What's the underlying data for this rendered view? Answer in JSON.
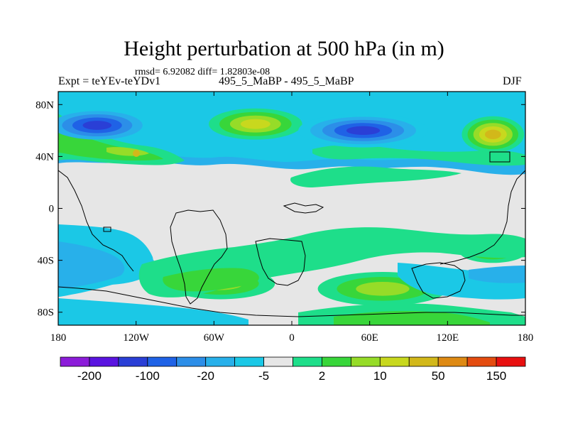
{
  "header": {
    "title": "Height perturbation at 500 hPa (in m)",
    "stats": "rmsd= 6.92082 diff= 1.82803e-08",
    "expt": "Expt = teYEv-teYDv1",
    "center": "495_5_MaBP - 495_5_MaBP",
    "season": "DJF"
  },
  "chart_data": {
    "type": "heatmap",
    "title": "Height perturbation at 500 hPa (in m)",
    "xlabel": "",
    "ylabel": "",
    "xlim": [
      -180,
      180
    ],
    "ylim": [
      -90,
      90
    ],
    "x_ticks": [
      {
        "value": -180,
        "label": "180"
      },
      {
        "value": -120,
        "label": "120W"
      },
      {
        "value": -60,
        "label": "60W"
      },
      {
        "value": 0,
        "label": "0"
      },
      {
        "value": 60,
        "label": "60E"
      },
      {
        "value": 120,
        "label": "120E"
      },
      {
        "value": 180,
        "label": "180"
      }
    ],
    "y_ticks": [
      {
        "value": 80,
        "label": "80N"
      },
      {
        "value": 40,
        "label": "40N"
      },
      {
        "value": 0,
        "label": "0"
      },
      {
        "value": -40,
        "label": "40S"
      },
      {
        "value": -80,
        "label": "80S"
      }
    ],
    "colorbar": {
      "colors": [
        "#8c1cd9",
        "#5a14e0",
        "#2a3fd6",
        "#1f62e6",
        "#2c8ee8",
        "#28b0ea",
        "#1bc8e6",
        "#e6e6e6",
        "#1ede8a",
        "#38d63a",
        "#96dc28",
        "#c8d81e",
        "#d2b81a",
        "#de8a14",
        "#e44c10",
        "#e81010"
      ],
      "labels": [
        {
          "after_index": 0,
          "text": "-200"
        },
        {
          "after_index": 2,
          "text": "-100"
        },
        {
          "after_index": 4,
          "text": "-20"
        },
        {
          "after_index": 6,
          "text": "-5"
        },
        {
          "after_index": 8,
          "text": "2"
        },
        {
          "after_index": 10,
          "text": "10"
        },
        {
          "after_index": 12,
          "text": "50"
        },
        {
          "after_index": 14,
          "text": "150"
        }
      ]
    },
    "regions": [
      {
        "name": "n-pacific-low",
        "lon": -150,
        "lat": 64,
        "rx": 35,
        "ry": 11,
        "levels": [
          5,
          4,
          3,
          2
        ]
      },
      {
        "name": "n-atlantic-high",
        "lon": -28,
        "lat": 65,
        "rx": 36,
        "ry": 12,
        "levels": [
          8,
          9,
          10,
          11
        ]
      },
      {
        "name": "eurasia-low",
        "lon": 55,
        "lat": 60,
        "rx": 50,
        "ry": 13,
        "levels": [
          6,
          5,
          4,
          3,
          2
        ]
      },
      {
        "name": "ne-pacific-high",
        "lon": 155,
        "lat": 57,
        "rx": 24,
        "ry": 14,
        "levels": [
          8,
          9,
          10,
          11,
          12
        ]
      },
      {
        "name": "sw-pacific-low",
        "lon": -145,
        "lat": -44,
        "rx": 40,
        "ry": 15,
        "levels": [
          6,
          5,
          4
        ]
      },
      {
        "name": "s-atlantic-high",
        "lon": -55,
        "lat": -58,
        "rx": 42,
        "ry": 12,
        "levels": [
          8,
          9,
          10
        ]
      },
      {
        "name": "s-indian-high",
        "lon": 70,
        "lat": -62,
        "rx": 50,
        "ry": 13,
        "levels": [
          8,
          9,
          10
        ]
      },
      {
        "name": "se-pacific-high",
        "lon": 155,
        "lat": -33,
        "rx": 26,
        "ry": 9,
        "levels": [
          8,
          9,
          10
        ]
      }
    ]
  }
}
